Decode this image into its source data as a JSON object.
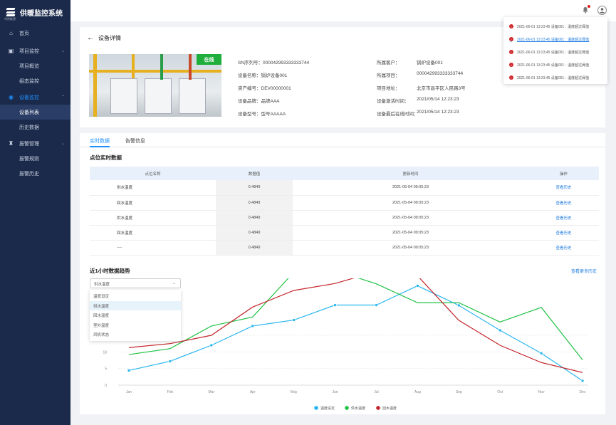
{
  "app": {
    "title": "供暖监控系统",
    "logo_sub": "华热能源"
  },
  "sidebar": {
    "items": [
      {
        "label": "首页",
        "icon": "home-icon"
      },
      {
        "label": "项目监控",
        "icon": "monitor-icon"
      },
      {
        "label": "项目概览"
      },
      {
        "label": "组态监控"
      },
      {
        "label": "设备监控",
        "icon": "device-icon"
      },
      {
        "label": "设备列表"
      },
      {
        "label": "历史数据"
      },
      {
        "label": "报警管理",
        "icon": "alarm-icon"
      },
      {
        "label": "报警规则"
      },
      {
        "label": "报警历史"
      }
    ]
  },
  "notifications": [
    {
      "text": "2021-06-01 13:23:45  设备001：温度超过阈值"
    },
    {
      "text": "2021-06-01 13:23:45  设备001：温度超过阈值"
    },
    {
      "text": "2021-06-01 13:23:45  设备001：温度超过阈值"
    },
    {
      "text": "2021-06-01 13:23:45  设备001：温度超过阈值"
    },
    {
      "text": "2021-06-01 13:23:45  设备001：温度超过阈值"
    }
  ],
  "detail": {
    "title": "设备详情",
    "status": "在线",
    "left_fields": [
      "SN序列号：000042993333333744",
      "设备名称：锅炉设备001",
      "资产编号：DEV00000001",
      "设备品牌：品牌AAA",
      "设备型号：型号AAAAA"
    ],
    "right_labels": [
      "所属客户：",
      "所属项目：",
      "项目地址：",
      "设备激活时间：",
      "设备最后在线时间："
    ],
    "right_values": [
      "锅炉设备001",
      "000042993333333744",
      "北京市昌平区人民路3号",
      "2021/05/14 12:23:23",
      "2021/05/14 12:23:23"
    ]
  },
  "tabs": [
    "实时数据",
    "告警信息"
  ],
  "realtime": {
    "title": "点位实时数据",
    "headers": [
      "点位名称",
      "数据值",
      "更新时间",
      "操作"
    ],
    "rows": [
      [
        "供水温度",
        "0.4849",
        "2021-05-04  09:05:23",
        "查看历史"
      ],
      [
        "回水温度",
        "0.4849",
        "2021-05-04  09:05:23",
        "查看历史"
      ],
      [
        "供水温度",
        "0.4849",
        "2021-05-04  09:05:23",
        "查看历史"
      ],
      [
        "回水温度",
        "0.4849",
        "2021-05-04  09:05:23",
        "查看历史"
      ],
      [
        "----",
        "0.4849",
        "2021-05-04  09:05:23",
        "查看历史"
      ]
    ]
  },
  "trend": {
    "title": "近1小时数据趋势",
    "more_link": "查看更多历史",
    "select_value": "供水温度",
    "options": [
      "温度设定",
      "供水温度",
      "回水温度",
      "室外温度",
      "风机状态"
    ],
    "selected_option_index": 1
  },
  "chart_data": {
    "type": "line",
    "categories": [
      "Jan",
      "Feb",
      "Mar",
      "Apr",
      "May",
      "Jun",
      "Jul",
      "Aug",
      "Sep",
      "Oct",
      "Nov",
      "Dec"
    ],
    "ylim": [
      0,
      30
    ],
    "yticks": [
      0,
      5,
      10,
      15
    ],
    "series": [
      {
        "name": "温度设定",
        "color": "#29b6f0",
        "values": [
          4.4,
          7.2,
          12.0,
          17.8,
          19.6,
          24.1,
          24.1,
          29.9,
          24.0,
          16.5,
          9.6,
          1.3
        ]
      },
      {
        "name": "供水温度",
        "color": "#1fc244",
        "values": [
          9.2,
          11.0,
          17.8,
          20.5,
          34.0,
          34.5,
          30.5,
          24.8,
          24.8,
          19.0,
          23.4,
          7.6
        ]
      },
      {
        "name": "回水温度",
        "color": "#c4252b",
        "values": [
          11.3,
          12.5,
          15.0,
          23.5,
          28.5,
          30.6,
          34.2,
          32.9,
          19.5,
          12.0,
          6.8,
          3.8
        ]
      }
    ]
  }
}
